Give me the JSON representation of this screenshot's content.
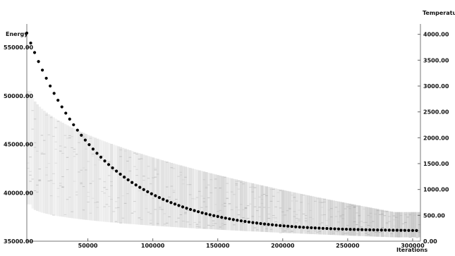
{
  "chart_data": {
    "type": "scatter",
    "title": "",
    "xlabel": "Iterations",
    "ylabel_left": "Energy",
    "ylabel_right": "Temperature",
    "x_range": [
      3000,
      306000
    ],
    "x_ticks": [
      50000,
      100000,
      150000,
      200000,
      250000,
      300000
    ],
    "y_left_range": [
      35000,
      57400
    ],
    "y_left_ticks": [
      35000,
      40000,
      45000,
      50000,
      55000
    ],
    "y_right_range": [
      0,
      4200
    ],
    "y_right_ticks": [
      0,
      500,
      1000,
      1500,
      2000,
      2500,
      3000,
      3500,
      4000
    ],
    "tick_decimals": 2,
    "grid": false,
    "legend": "none",
    "series": [
      {
        "axis": "right",
        "marker": "dot",
        "color": "#000000",
        "x": [
          3000,
          6000,
          9000,
          12000,
          15000,
          18000,
          21000,
          24000,
          27000,
          30000,
          33000,
          36000,
          39000,
          42000,
          45000,
          48000,
          51000,
          54000,
          57000,
          60000,
          63000,
          66000,
          69000,
          72000,
          75000,
          78000,
          81000,
          84000,
          87000,
          90000,
          93000,
          96000,
          99000,
          102000,
          105000,
          108000,
          111000,
          114000,
          117000,
          120000,
          123000,
          126000,
          129000,
          132000,
          135000,
          138000,
          141000,
          144000,
          147000,
          150000,
          153000,
          156000,
          159000,
          162000,
          165000,
          168000,
          171000,
          174000,
          177000,
          180000,
          183000,
          186000,
          189000,
          192000,
          195000,
          198000,
          201000,
          204000,
          207000,
          210000,
          213000,
          216000,
          219000,
          222000,
          225000,
          228000,
          231000,
          234000,
          237000,
          240000,
          243000,
          246000,
          249000,
          252000,
          255000,
          258000,
          261000,
          264000,
          267000,
          270000,
          273000,
          276000,
          279000,
          282000,
          285000,
          288000,
          291000,
          294000,
          297000,
          300000,
          303000
        ],
        "y": [
          4025,
          3831,
          3648,
          3474,
          3308,
          3151,
          3001,
          2859,
          2725,
          2597,
          2476,
          2361,
          2251,
          2147,
          2049,
          1955,
          1866,
          1781,
          1700,
          1624,
          1551,
          1482,
          1417,
          1355,
          1296,
          1239,
          1186,
          1135,
          1087,
          1041,
          998,
          956,
          917,
          880,
          844,
          810,
          778,
          747,
          718,
          690,
          663,
          638,
          614,
          592,
          570,
          549,
          530,
          511,
          494,
          477,
          461,
          446,
          432,
          418,
          405,
          393,
          382,
          371,
          360,
          351,
          341,
          333,
          324,
          317,
          309,
          302,
          296,
          290,
          284,
          278,
          273,
          268,
          264,
          260,
          256,
          252,
          248,
          245,
          242,
          239,
          236,
          233,
          231,
          229,
          227,
          225,
          223,
          221,
          219,
          218,
          217,
          215,
          214,
          213,
          212,
          211,
          210,
          209,
          208,
          207,
          206
        ]
      }
    ]
  }
}
